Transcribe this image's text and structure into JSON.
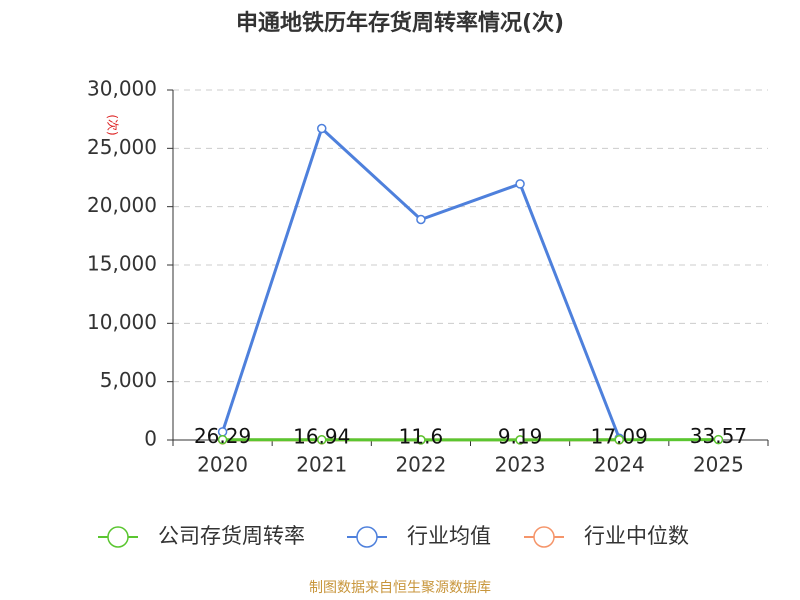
{
  "chart_data": {
    "type": "line",
    "title": "申通地铁历年存货周转率情况(次)",
    "y_label": "(次)",
    "source": "制图数据来自恒生聚源数据库",
    "categories": [
      "2020",
      "2021",
      "2022",
      "2023",
      "2024",
      "2025"
    ],
    "series": [
      {
        "name": "公司存货周转率",
        "color": "#5ac630",
        "values": [
          26.29,
          16.94,
          11.6,
          9.19,
          17.09,
          33.57
        ]
      },
      {
        "name": "行业均值",
        "color": "#4e80dc",
        "values": [
          700,
          26700,
          18900,
          21950,
          150,
          null
        ]
      },
      {
        "name": "行业中位数",
        "color": "#f5956a",
        "values": [
          10,
          10,
          9,
          9,
          10,
          null
        ]
      }
    ],
    "ylim": [
      0,
      30000
    ],
    "yticks": [
      0,
      {
        "value": 5000,
        "label": "5,000"
      },
      {
        "value": 10000,
        "label": "10,000"
      },
      {
        "value": 15000,
        "label": "15,000"
      },
      {
        "value": 20000,
        "label": "20,000"
      },
      {
        "value": 25000,
        "label": "25,000"
      },
      {
        "value": 30000,
        "label": "30,000"
      }
    ],
    "grid": true,
    "legend": "bottom"
  }
}
